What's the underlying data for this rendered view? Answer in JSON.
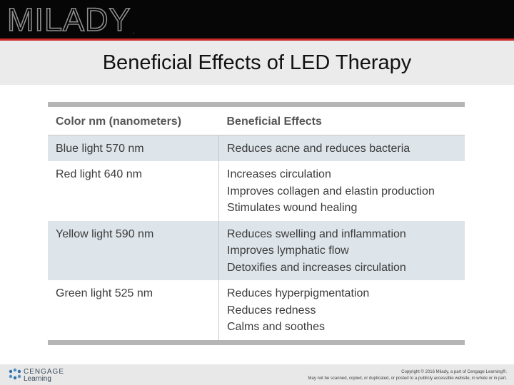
{
  "header": {
    "logo": "MILADY",
    "logo_mark": "."
  },
  "slide": {
    "title": "Beneficial Effects of LED Therapy"
  },
  "table": {
    "columns": [
      "Color nm (nanometers)",
      "Beneficial Effects"
    ],
    "rows": [
      {
        "color": "Blue light 570 nm",
        "effects": [
          "Reduces acne and reduces bacteria"
        ]
      },
      {
        "color": "Red light 640 nm",
        "effects": [
          "Increases circulation",
          "Improves collagen and elastin production",
          "Stimulates wound healing"
        ]
      },
      {
        "color": "Yellow light 590 nm",
        "effects": [
          "Reduces swelling and inflammation",
          "Improves lymphatic flow",
          "Detoxifies and increases circulation"
        ]
      },
      {
        "color": "Green light 525 nm",
        "effects": [
          "Reduces hyperpigmentation",
          "Reduces redness",
          "Calms and soothes"
        ]
      }
    ]
  },
  "footer": {
    "brand_top": "CENGAGE",
    "brand_bottom": "Learning",
    "copyright_line1": "Copyright © 2016 Milady, a part of Cengage Learning®.",
    "copyright_line2": "May not be scanned, copied, or duplicated, or posted to a publicly accessible website, in whole or in part."
  },
  "colors": {
    "accent_red": "#c8282a",
    "row_shade": "#dde4ea",
    "rule_gray": "#b5b5b5"
  }
}
